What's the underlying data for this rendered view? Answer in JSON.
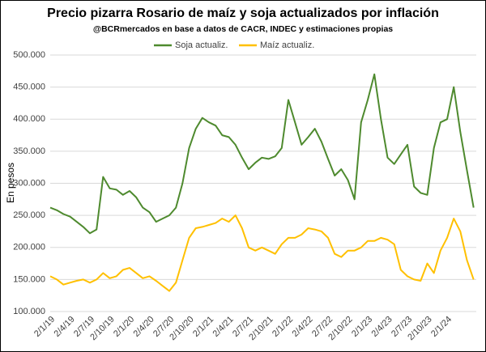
{
  "chart_data": {
    "type": "line",
    "title": "Precio pizarra Rosario de maíz y soja actualizados por inflación",
    "subtitle": "@BCRmercados en base a datos de CACR, INDEC y estimaciones propias",
    "y_label": "En pesos",
    "categories": [
      "2/1/19",
      null,
      null,
      "2/4/19",
      null,
      null,
      "2/7/19",
      null,
      null,
      "2/10/19",
      null,
      null,
      "2/1/20",
      null,
      null,
      "2/4/20",
      null,
      null,
      "2/7/20",
      null,
      null,
      "2/10/20",
      null,
      null,
      "2/1/21",
      null,
      null,
      "2/4/21",
      null,
      null,
      "2/7/21",
      null,
      null,
      "2/10/21",
      null,
      null,
      "2/1/22",
      null,
      null,
      "2/4/22",
      null,
      null,
      "2/7/22",
      null,
      null,
      "2/10/22",
      null,
      null,
      "2/1/23",
      null,
      null,
      "2/4/23",
      null,
      null,
      "2/7/23",
      null,
      null,
      "2/10/23",
      null,
      null,
      "2/1/24",
      null,
      null,
      null,
      null
    ],
    "series": [
      {
        "name": "Soja actualiz.",
        "color": "#4e8a2e",
        "values": [
          262000,
          258000,
          252000,
          248000,
          240000,
          232000,
          222000,
          228000,
          310000,
          292000,
          290000,
          282000,
          288000,
          278000,
          262000,
          255000,
          240000,
          245000,
          250000,
          262000,
          300000,
          355000,
          385000,
          402000,
          395000,
          390000,
          375000,
          372000,
          360000,
          340000,
          322000,
          332000,
          340000,
          338000,
          342000,
          355000,
          430000,
          395000,
          360000,
          372000,
          385000,
          365000,
          338000,
          312000,
          322000,
          305000,
          275000,
          395000,
          430000,
          470000,
          400000,
          340000,
          330000,
          345000,
          360000,
          295000,
          285000,
          282000,
          355000,
          395000,
          400000,
          450000,
          380000,
          320000,
          262000
        ]
      },
      {
        "name": "Maíz actualiz.",
        "color": "#ffc000",
        "values": [
          155000,
          150000,
          142000,
          145000,
          148000,
          150000,
          145000,
          150000,
          160000,
          152000,
          155000,
          165000,
          168000,
          160000,
          152000,
          155000,
          148000,
          140000,
          132000,
          145000,
          180000,
          215000,
          230000,
          232000,
          235000,
          238000,
          245000,
          240000,
          250000,
          230000,
          200000,
          195000,
          200000,
          195000,
          190000,
          205000,
          215000,
          215000,
          220000,
          230000,
          228000,
          225000,
          215000,
          190000,
          185000,
          195000,
          195000,
          200000,
          210000,
          210000,
          215000,
          212000,
          205000,
          165000,
          155000,
          150000,
          148000,
          175000,
          160000,
          195000,
          215000,
          245000,
          225000,
          180000,
          150000
        ]
      }
    ],
    "ylim": [
      100000,
      500000
    ],
    "yticks": [
      {
        "value": 100000,
        "label": "100.000"
      },
      {
        "value": 150000,
        "label": "150.000"
      },
      {
        "value": 200000,
        "label": "200.000"
      },
      {
        "value": 250000,
        "label": "250.000"
      },
      {
        "value": 300000,
        "label": "300.000"
      },
      {
        "value": 350000,
        "label": "350.000"
      },
      {
        "value": 400000,
        "label": "400.000"
      },
      {
        "value": 450000,
        "label": "450.000"
      },
      {
        "value": 500000,
        "label": "500.000"
      }
    ],
    "grid": true,
    "legend": "top"
  }
}
